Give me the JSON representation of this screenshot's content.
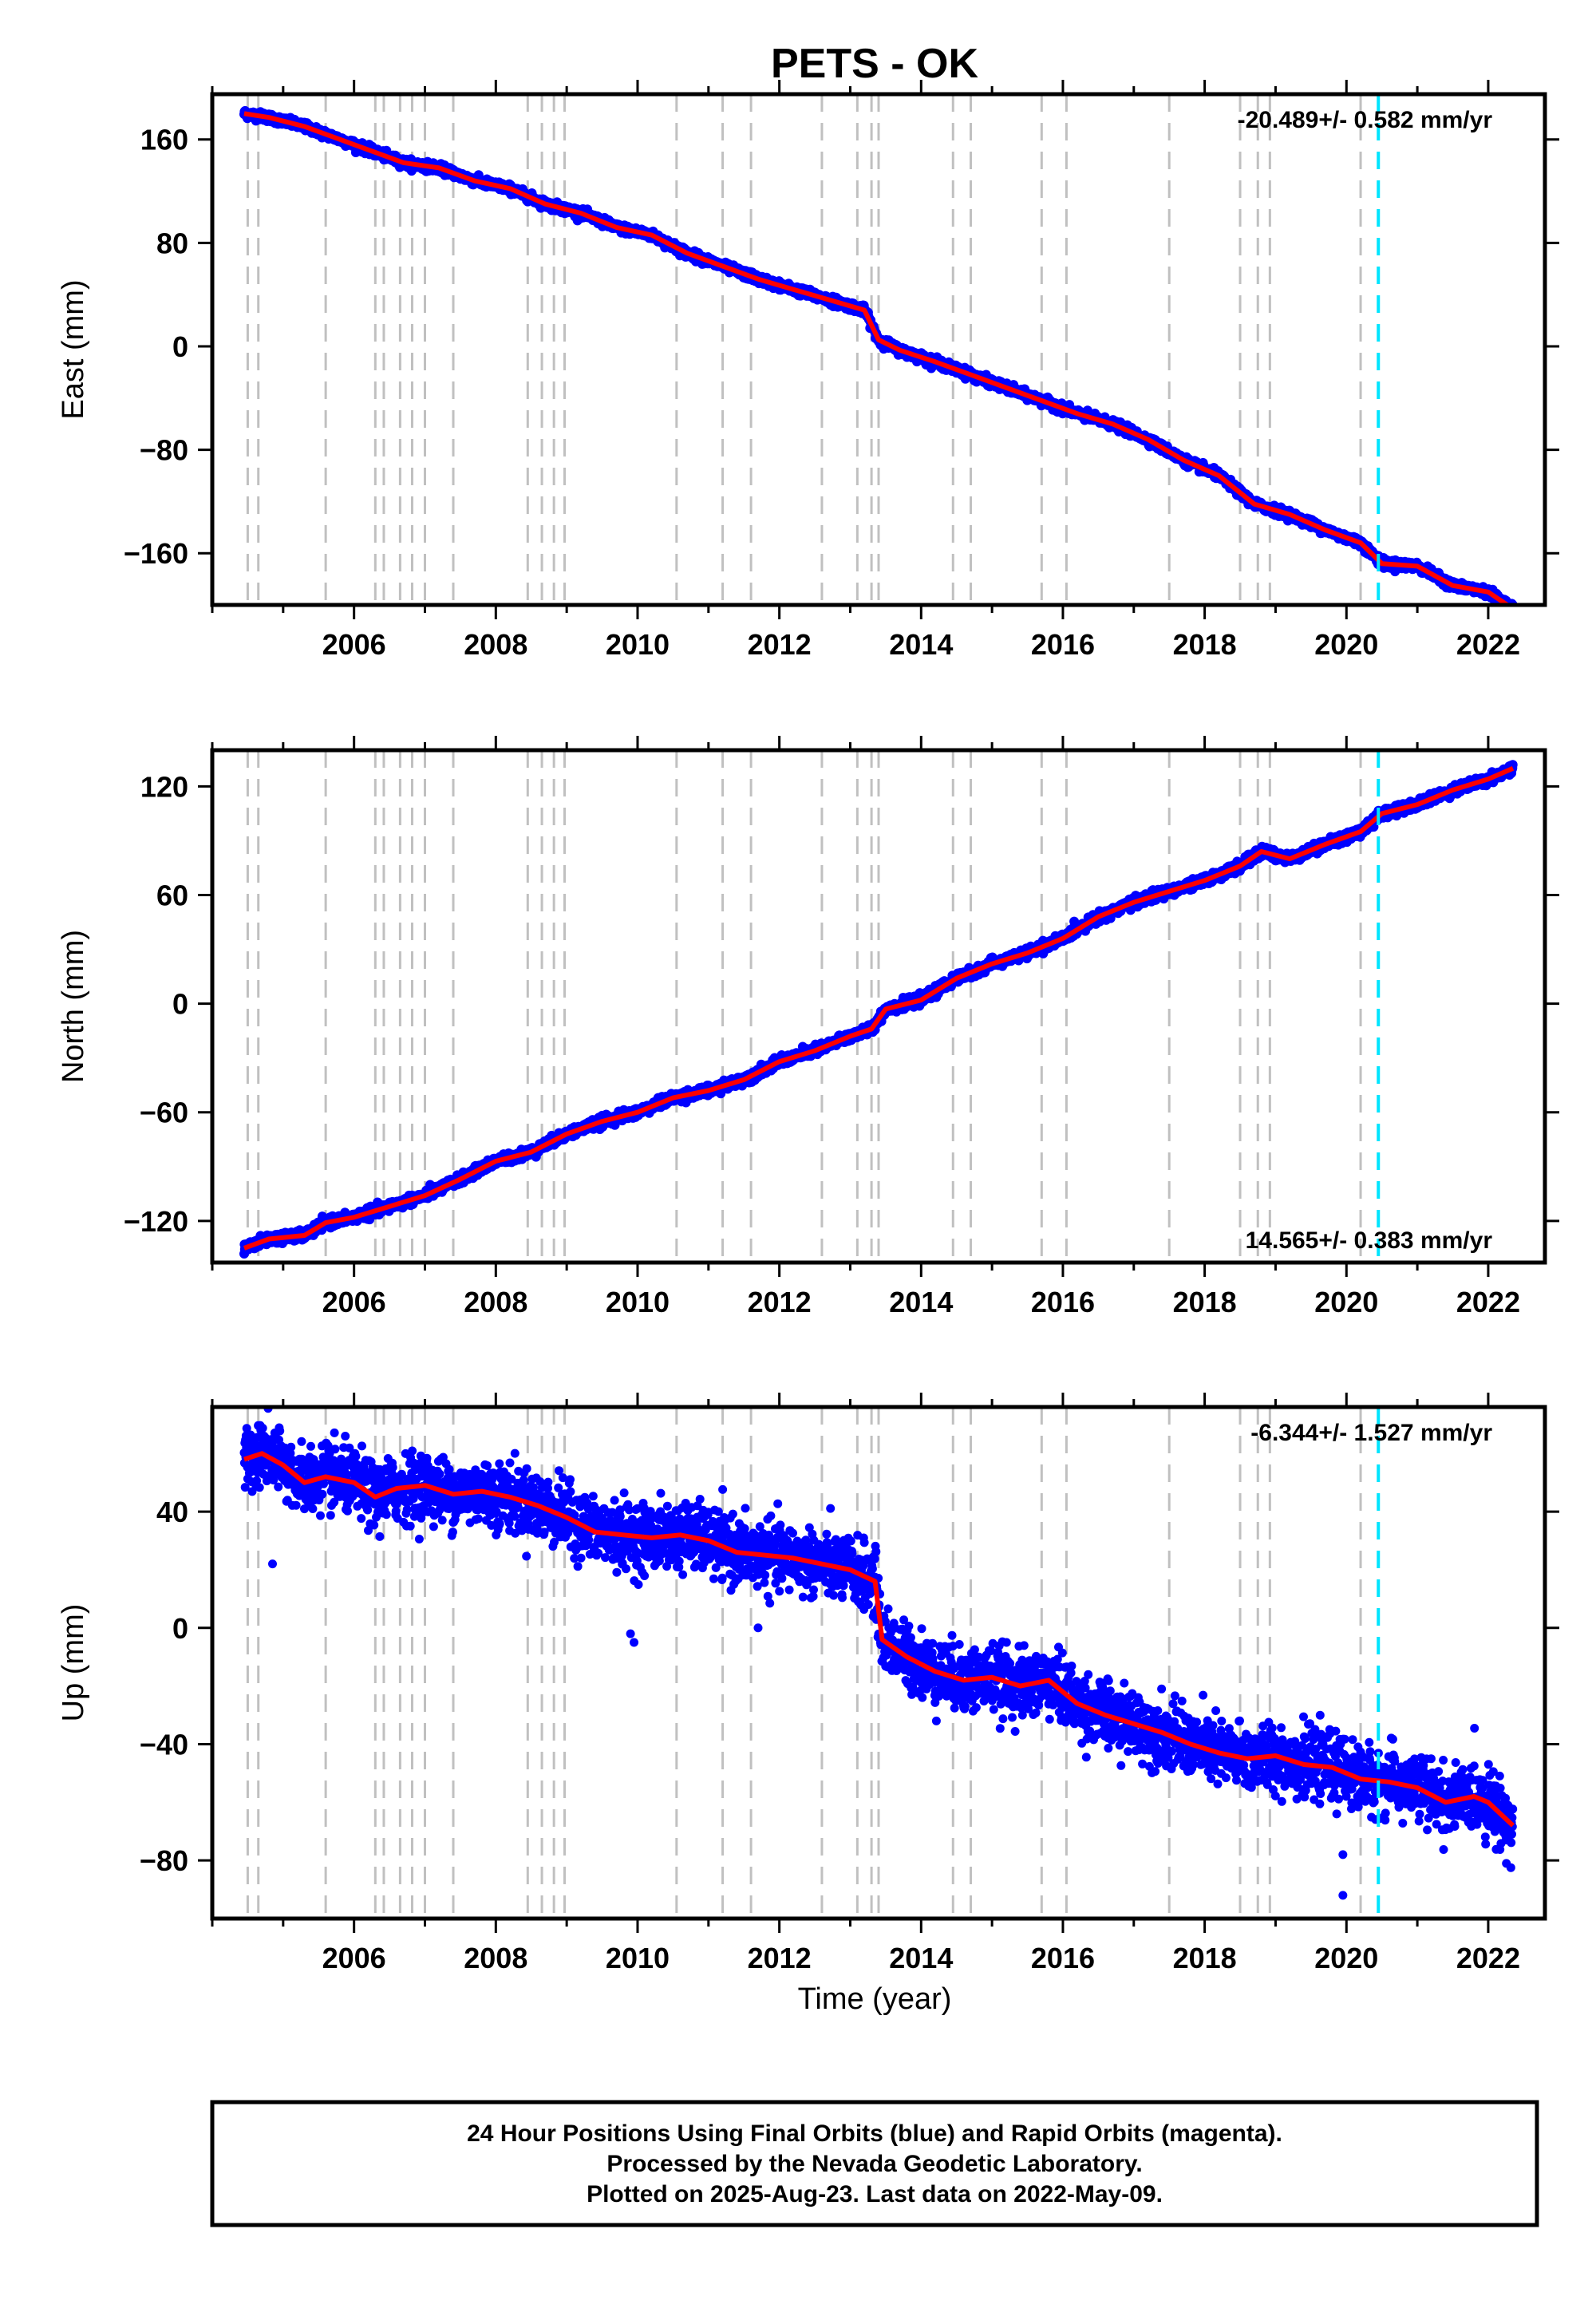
{
  "title": "PETS - OK",
  "x_axis_label": "Time (year)",
  "footer": {
    "line1": "24 Hour Positions Using Final Orbits (blue) and Rapid Orbits (magenta).",
    "line2": "Processed by the Nevada Geodetic Laboratory.",
    "line3": "Plotted on 2025-Aug-23. Last data on 2022-May-09."
  },
  "colors": {
    "data_points": "#0000ff",
    "model_line": "#ff0000",
    "equipment_change_lines": "#c0c0c0",
    "marked_event_line": "#00e5ff",
    "frame": "#000000"
  },
  "chart_data": [
    {
      "type": "scatter",
      "component": "East",
      "ylabel": "East (mm)",
      "xlim": [
        2004.0,
        2022.8
      ],
      "ylim": [
        -200,
        195
      ],
      "x_ticks": [
        2006,
        2008,
        2010,
        2012,
        2014,
        2016,
        2018,
        2020,
        2022
      ],
      "y_ticks": [
        160,
        80,
        0,
        -80,
        -160
      ],
      "rate_label": "-20.489+/- 0.582 mm/yr",
      "rate_label_position": "top-right",
      "series": [
        {
          "name": "Final Orbits",
          "x": [
            2004.45,
            2004.8,
            2005.3,
            2005.8,
            2006.3,
            2006.7,
            2007.2,
            2007.7,
            2008.2,
            2008.7,
            2009.2,
            2009.7,
            2010.2,
            2010.7,
            2011.2,
            2011.7,
            2012.2,
            2012.7,
            2013.2,
            2013.4,
            2013.7,
            2014.2,
            2014.7,
            2015.2,
            2015.7,
            2016.2,
            2016.7,
            2017.2,
            2017.7,
            2018.2,
            2018.7,
            2019.2,
            2019.7,
            2020.2,
            2020.5,
            2021.0,
            2021.5,
            2022.0,
            2022.35
          ],
          "y": [
            180,
            177,
            170,
            160,
            150,
            142,
            138,
            128,
            122,
            110,
            103,
            92,
            86,
            72,
            62,
            52,
            44,
            36,
            28,
            5,
            -3,
            -12,
            -22,
            -32,
            -42,
            -52,
            -60,
            -72,
            -88,
            -100,
            -122,
            -130,
            -142,
            -152,
            -168,
            -170,
            -185,
            -190,
            -203
          ]
        }
      ],
      "equipment_changes": [
        2004.5,
        2004.65,
        2005.6,
        2006.3,
        2006.42,
        2006.65,
        2006.82,
        2007.0,
        2007.4,
        2008.45,
        2008.65,
        2008.82,
        2008.97,
        2010.55,
        2011.2,
        2011.6,
        2012.6,
        2013.1,
        2013.3,
        2013.4,
        2014.45,
        2014.7,
        2015.7,
        2016.05,
        2017.5,
        2018.5,
        2018.75,
        2018.92,
        2020.2
      ],
      "marked_event": 2020.45
    },
    {
      "type": "scatter",
      "component": "North",
      "ylabel": "North (mm)",
      "xlim": [
        2004.0,
        2022.8
      ],
      "ylim": [
        -143,
        140
      ],
      "x_ticks": [
        2006,
        2008,
        2010,
        2012,
        2014,
        2016,
        2018,
        2020,
        2022
      ],
      "y_ticks": [
        120,
        60,
        0,
        -60,
        -120
      ],
      "rate_label": "14.565+/- 0.383 mm/yr",
      "rate_label_position": "bottom-right",
      "series": [
        {
          "name": "Final Orbits",
          "x": [
            2004.45,
            2004.8,
            2005.3,
            2005.6,
            2006.0,
            2006.5,
            2007.0,
            2007.5,
            2008.0,
            2008.5,
            2009.0,
            2009.5,
            2010.0,
            2010.5,
            2011.0,
            2011.5,
            2012.0,
            2012.5,
            2013.0,
            2013.3,
            2013.5,
            2014.0,
            2014.5,
            2015.0,
            2015.5,
            2016.0,
            2016.5,
            2017.0,
            2017.5,
            2018.0,
            2018.5,
            2018.8,
            2019.2,
            2019.7,
            2020.2,
            2020.5,
            2021.0,
            2021.5,
            2022.0,
            2022.35
          ],
          "y": [
            -135,
            -130,
            -128,
            -121,
            -118,
            -112,
            -106,
            -97,
            -87,
            -82,
            -72,
            -65,
            -60,
            -52,
            -48,
            -42,
            -32,
            -26,
            -18,
            -14,
            -3,
            2,
            14,
            22,
            28,
            36,
            48,
            56,
            62,
            68,
            76,
            84,
            80,
            88,
            95,
            105,
            110,
            118,
            124,
            130
          ]
        }
      ],
      "equipment_changes": [
        2004.5,
        2004.65,
        2005.6,
        2006.3,
        2006.42,
        2006.65,
        2006.82,
        2007.0,
        2007.4,
        2008.45,
        2008.65,
        2008.82,
        2008.97,
        2010.55,
        2011.2,
        2011.6,
        2012.6,
        2013.1,
        2013.3,
        2013.4,
        2014.45,
        2014.7,
        2015.7,
        2016.05,
        2017.5,
        2018.5,
        2018.75,
        2018.92,
        2020.2
      ],
      "marked_event": 2020.45
    },
    {
      "type": "scatter",
      "component": "Up",
      "ylabel": "Up (mm)",
      "xlim": [
        2004.0,
        2022.8
      ],
      "ylim": [
        -100,
        76
      ],
      "x_ticks": [
        2006,
        2008,
        2010,
        2012,
        2014,
        2016,
        2018,
        2020,
        2022
      ],
      "y_ticks": [
        40,
        0,
        -40,
        -80
      ],
      "rate_label": "-6.344+/- 1.527 mm/yr",
      "rate_label_position": "top-right",
      "series": [
        {
          "name": "Final Orbits",
          "x": [
            2004.45,
            2004.7,
            2005.0,
            2005.3,
            2005.6,
            2006.0,
            2006.3,
            2006.6,
            2007.0,
            2007.4,
            2007.8,
            2008.2,
            2008.6,
            2009.0,
            2009.4,
            2009.8,
            2010.2,
            2010.6,
            2011.0,
            2011.4,
            2011.8,
            2012.2,
            2012.6,
            2013.0,
            2013.35,
            2013.45,
            2013.8,
            2014.2,
            2014.6,
            2015.0,
            2015.4,
            2015.8,
            2016.2,
            2016.6,
            2017.0,
            2017.4,
            2017.8,
            2018.2,
            2018.6,
            2019.0,
            2019.4,
            2019.8,
            2020.2,
            2020.6,
            2021.0,
            2021.4,
            2021.8,
            2022.0,
            2022.35
          ],
          "y": [
            58,
            60,
            56,
            50,
            52,
            50,
            45,
            48,
            49,
            46,
            47,
            45,
            42,
            38,
            33,
            32,
            31,
            32,
            30,
            26,
            25,
            24,
            22,
            20,
            16,
            -4,
            -10,
            -15,
            -18,
            -17,
            -20,
            -18,
            -26,
            -30,
            -33,
            -36,
            -40,
            -43,
            -45,
            -44,
            -47,
            -48,
            -52,
            -53,
            -55,
            -60,
            -58,
            -60,
            -68
          ]
        }
      ],
      "equipment_changes": [
        2004.5,
        2004.65,
        2005.6,
        2006.3,
        2006.42,
        2006.65,
        2006.82,
        2007.0,
        2007.4,
        2008.45,
        2008.65,
        2008.82,
        2008.97,
        2010.55,
        2011.2,
        2011.6,
        2012.6,
        2013.1,
        2013.3,
        2013.4,
        2014.45,
        2014.7,
        2015.7,
        2016.05,
        2017.5,
        2018.5,
        2018.75,
        2018.92,
        2020.2
      ],
      "marked_event": 2020.45
    }
  ]
}
